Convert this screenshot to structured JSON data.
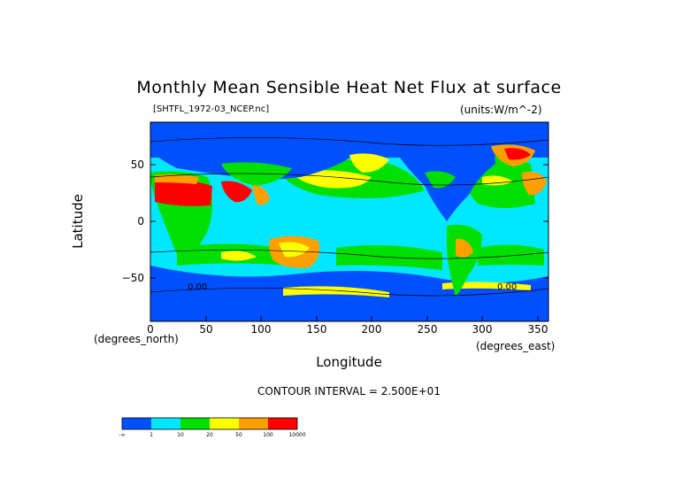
{
  "title": "Monthly Mean Sensible Heat Net Flux at surface",
  "file_label": "[SHTFL_1972-03_NCEP.nc]",
  "units_label": "(units:W/m^-2)",
  "y_axis": {
    "label": "Latitude",
    "ticks": [
      "50",
      "0",
      "−50"
    ]
  },
  "x_axis": {
    "label": "Longitude",
    "ticks": [
      "0",
      "50",
      "100",
      "150",
      "200",
      "250",
      "300",
      "350"
    ],
    "unit_left": "(degrees_north)",
    "unit_right": "(degrees_east)"
  },
  "contour_interval": "CONTOUR INTERVAL = 2.500E+01",
  "map_labels": [
    "0.00",
    "0.00"
  ],
  "colorbar": {
    "colors": [
      "#0050ff",
      "#00e8ff",
      "#00e000",
      "#ffff00",
      "#ffa000",
      "#ff0000"
    ],
    "labels": [
      "-∞",
      "1",
      "10",
      "20",
      "50",
      "100",
      "10000"
    ]
  },
  "palette": {
    "ocean_low": "#0050ff",
    "ocean": "#00e8ff",
    "mid": "#00e000",
    "warm": "#ffff00",
    "hot": "#ffa000",
    "max": "#ff0000"
  }
}
